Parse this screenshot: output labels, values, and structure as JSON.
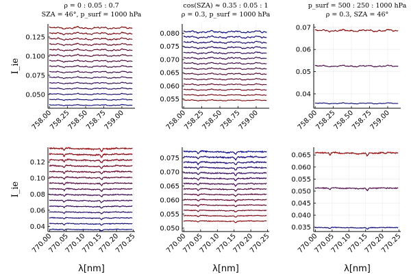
{
  "chart_data": [
    {
      "type": "line",
      "title": [
        "ρ = 0 : 0.05 : 0.7",
        "SZA = 46°, p_surf = 1000 hPa"
      ],
      "ylabel": "I_ie",
      "xlabel": "",
      "xlim": [
        757.98,
        759.18
      ],
      "ylim": [
        0.032,
        0.142
      ],
      "xticks": [
        758.0,
        758.25,
        758.5,
        758.75,
        759.0
      ],
      "xticklabels": [
        "758.00",
        "758.25",
        "758.50",
        "758.75",
        "759.00"
      ],
      "yticks": [
        0.05,
        0.075,
        0.1,
        0.125
      ],
      "yticklabels": [
        "0.050",
        "0.075",
        "0.100",
        "0.125"
      ],
      "grid": true,
      "series_levels": [
        0.036,
        0.0432,
        0.0504,
        0.0576,
        0.0648,
        0.072,
        0.0792,
        0.0864,
        0.0936,
        0.1008,
        0.108,
        0.1152,
        0.1224,
        0.1296,
        0.1368
      ],
      "color_gradient": [
        "#1a1adb",
        "#e41a1c"
      ],
      "model_color": "#000000"
    },
    {
      "type": "line",
      "title": [
        "cos(SZA) ≈ 0.35 : 0.05 : 1",
        "ρ = 0.3, p_surf = 1000 hPa"
      ],
      "ylabel": "",
      "xlabel": "",
      "xlim": [
        757.98,
        759.18
      ],
      "ylim": [
        0.0515,
        0.0835
      ],
      "xticks": [
        758.0,
        758.25,
        758.5,
        758.75,
        759.0
      ],
      "xticklabels": [
        "758.00",
        "758.25",
        "758.50",
        "758.75",
        "759.00"
      ],
      "yticks": [
        0.055,
        0.06,
        0.065,
        0.07,
        0.075,
        0.08
      ],
      "yticklabels": [
        "0.055",
        "0.060",
        "0.065",
        "0.070",
        "0.075",
        "0.080"
      ],
      "grid": true,
      "series_levels": [
        0.0545,
        0.0565,
        0.0585,
        0.0605,
        0.0625,
        0.0645,
        0.0665,
        0.0685,
        0.0705,
        0.0725,
        0.0745,
        0.0765,
        0.0785,
        0.0805
      ],
      "color_gradient": [
        "#e41a1c",
        "#1a1adb"
      ],
      "model_color": "#000000"
    },
    {
      "type": "line",
      "title": [
        "p_surf = 500 : 250 : 1000 hPa",
        "ρ = 0.3, SZA = 46°"
      ],
      "ylabel": "",
      "xlabel": "",
      "xlim": [
        757.98,
        759.18
      ],
      "ylim": [
        0.0335,
        0.0715
      ],
      "xticks": [
        758.0,
        758.25,
        758.5,
        758.75,
        759.0
      ],
      "xticklabels": [
        "758.00",
        "758.25",
        "758.50",
        "758.75",
        "759.00"
      ],
      "yticks": [
        0.04,
        0.05,
        0.06,
        0.07
      ],
      "yticklabels": [
        "0.04",
        "0.05",
        "0.06",
        "0.07"
      ],
      "grid": true,
      "series_levels": [
        0.0357,
        0.0525,
        0.0685
      ],
      "color_gradient": [
        "#1a1adb",
        "#e41a1c"
      ],
      "model_color": "#000000"
    },
    {
      "type": "line",
      "title": [],
      "ylabel": "I_ie",
      "xlabel": "λ[nm]",
      "xlim": [
        769.995,
        770.255
      ],
      "ylim": [
        0.0335,
        0.1385
      ],
      "xticks": [
        770.0,
        770.05,
        770.1,
        770.15,
        770.2,
        770.25
      ],
      "xticklabels": [
        "770.00",
        "770.05",
        "770.10",
        "770.15",
        "770.20",
        "770.25"
      ],
      "yticks": [
        0.04,
        0.06,
        0.08,
        0.1,
        0.12
      ],
      "yticklabels": [
        "0.04",
        "0.06",
        "0.08",
        "0.10",
        "0.12"
      ],
      "grid": true,
      "series_levels": [
        0.036,
        0.0432,
        0.0504,
        0.0576,
        0.0648,
        0.072,
        0.0792,
        0.0864,
        0.0936,
        0.1008,
        0.108,
        0.1152,
        0.1224,
        0.1296,
        0.1368
      ],
      "color_gradient": [
        "#1a1adb",
        "#e41a1c"
      ],
      "model_color": "#000000"
    },
    {
      "type": "line",
      "title": [],
      "ylabel": "",
      "xlabel": "λ[nm]",
      "xlim": [
        769.995,
        770.255
      ],
      "ylim": [
        0.0488,
        0.0788
      ],
      "xticks": [
        770.0,
        770.05,
        770.1,
        770.15,
        770.2,
        770.25
      ],
      "xticklabels": [
        "770.00",
        "770.05",
        "770.10",
        "770.15",
        "770.20",
        "770.25"
      ],
      "yticks": [
        0.05,
        0.055,
        0.06,
        0.065,
        0.07,
        0.075
      ],
      "yticklabels": [
        "0.050",
        "0.055",
        "0.060",
        "0.065",
        "0.070",
        "0.075"
      ],
      "grid": true,
      "series_levels": [
        0.0525,
        0.0544,
        0.0563,
        0.0582,
        0.0601,
        0.062,
        0.0639,
        0.0658,
        0.0677,
        0.0696,
        0.0715,
        0.0734,
        0.0753,
        0.0772
      ],
      "color_gradient": [
        "#e41a1c",
        "#1a1adb"
      ],
      "model_color": "#000000"
    },
    {
      "type": "line",
      "title": [],
      "ylabel": "",
      "xlabel": "λ[nm]",
      "xlim": [
        769.995,
        770.255
      ],
      "ylim": [
        0.0332,
        0.0682
      ],
      "xticks": [
        770.0,
        770.05,
        770.1,
        770.15,
        770.2,
        770.25
      ],
      "xticklabels": [
        "770.00",
        "770.05",
        "770.10",
        "770.15",
        "770.20",
        "770.25"
      ],
      "yticks": [
        0.035,
        0.04,
        0.045,
        0.05,
        0.055,
        0.06,
        0.065
      ],
      "yticklabels": [
        "0.035",
        "0.040",
        "0.045",
        "0.050",
        "0.055",
        "0.060",
        "0.065"
      ],
      "grid": true,
      "series_levels": [
        0.0348,
        0.0512,
        0.0658
      ],
      "color_gradient": [
        "#1a1adb",
        "#e41a1c"
      ],
      "model_color": "#000000"
    }
  ]
}
